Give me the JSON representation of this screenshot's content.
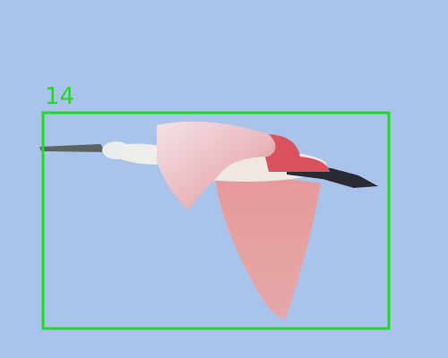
{
  "annotation": {
    "label": "14"
  }
}
